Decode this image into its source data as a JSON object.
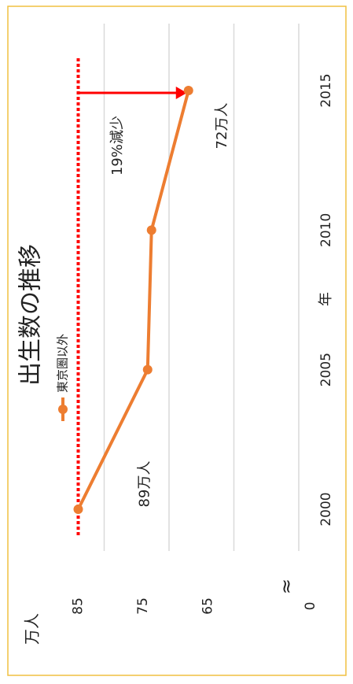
{
  "chart_data": {
    "type": "line",
    "title": "出生数の推移",
    "categories": [
      "2000",
      "2005",
      "2010",
      "2015"
    ],
    "series": [
      {
        "name": "東京圏以外",
        "color": "#ed7d31",
        "values": [
          89,
          78.3,
          77.7,
          72
        ],
        "value_labels": [
          "89万人",
          null,
          null,
          "72万人"
        ]
      }
    ],
    "ylim": [
      55,
      95
    ],
    "yticks": [
      65,
      75,
      85
    ],
    "y_origin_label": "0",
    "y_label": "万人",
    "x_label": "年",
    "grid": true,
    "annotation": "19%減少",
    "annotation_color": "#ff0000"
  }
}
